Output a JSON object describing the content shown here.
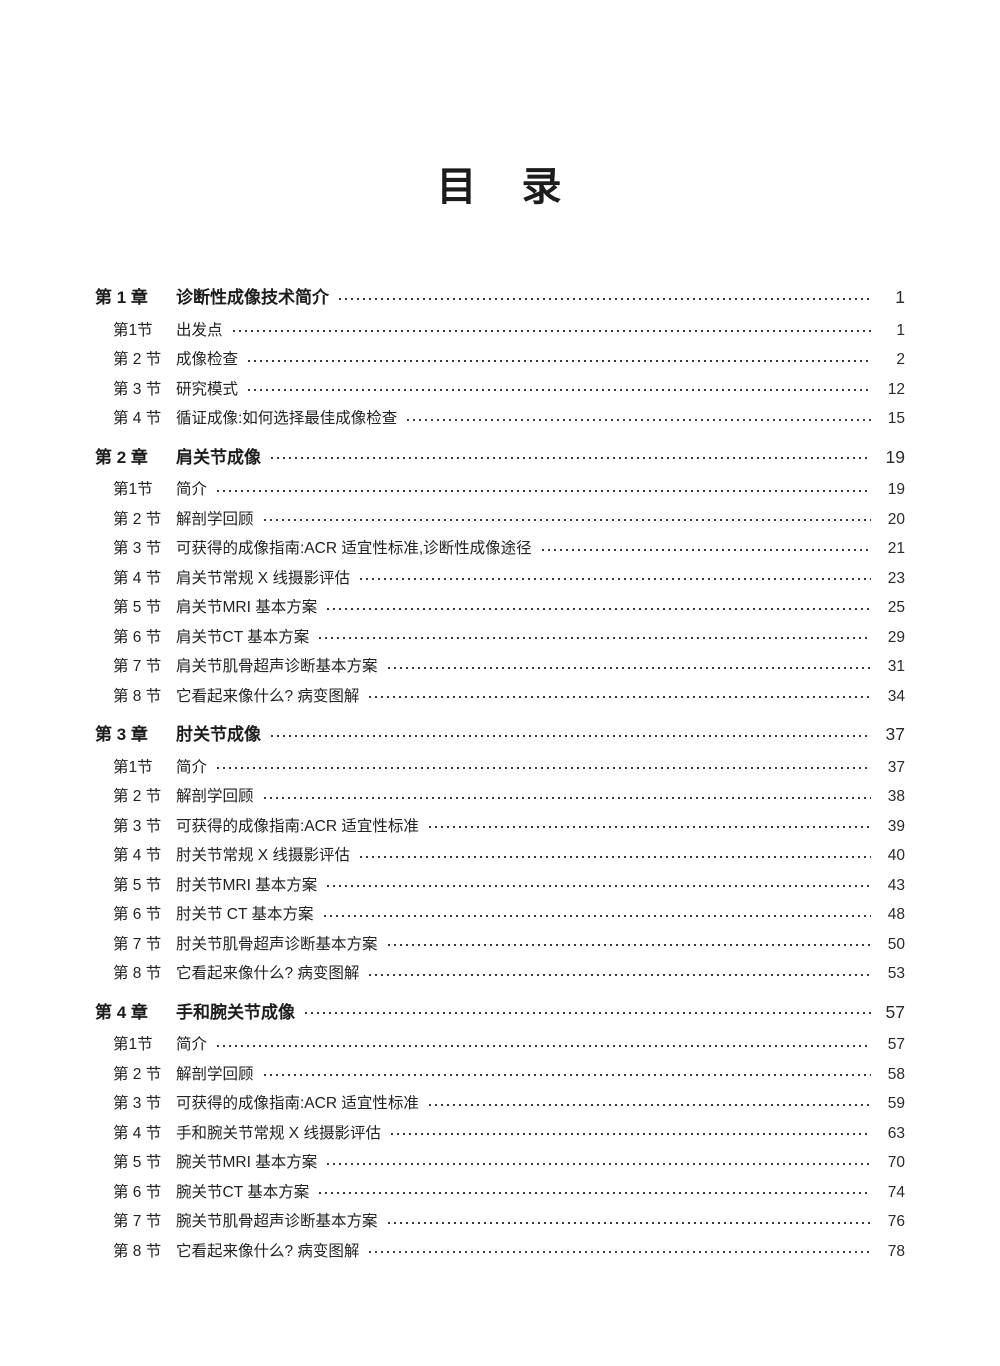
{
  "page": {
    "title": "目 录"
  },
  "colors": {
    "ink": "#222222",
    "background": "#ffffff"
  },
  "toc": {
    "chapters": [
      {
        "label": "第 1 章",
        "title": "诊断性成像技术简介",
        "page": "1",
        "sections": [
          {
            "label": "第1节",
            "title": "出发点",
            "page": "1"
          },
          {
            "label": "第 2 节",
            "title": "成像检查",
            "page": "2"
          },
          {
            "label": "第 3 节",
            "title": "研究模式",
            "page": "12"
          },
          {
            "label": "第 4 节",
            "title": "循证成像:如何选择最佳成像检查",
            "page": "15"
          }
        ]
      },
      {
        "label": "第 2 章",
        "title": "肩关节成像",
        "page": "19",
        "sections": [
          {
            "label": "第1节",
            "title": "简介",
            "page": "19"
          },
          {
            "label": "第 2 节",
            "title": "解剖学回顾",
            "page": "20"
          },
          {
            "label": "第 3 节",
            "title": "可获得的成像指南:ACR 适宜性标准,诊断性成像途径",
            "page": "21"
          },
          {
            "label": "第 4 节",
            "title": "肩关节常规 X 线摄影评估",
            "page": "23"
          },
          {
            "label": "第 5 节",
            "title": "肩关节MRI 基本方案",
            "page": "25"
          },
          {
            "label": "第 6 节",
            "title": "肩关节CT 基本方案",
            "page": "29"
          },
          {
            "label": "第 7 节",
            "title": "肩关节肌骨超声诊断基本方案",
            "page": "31"
          },
          {
            "label": "第 8 节",
            "title": "它看起来像什么? 病变图解",
            "page": "34"
          }
        ]
      },
      {
        "label": "第 3 章",
        "title": "肘关节成像",
        "page": "37",
        "sections": [
          {
            "label": "第1节",
            "title": "简介",
            "page": "37"
          },
          {
            "label": "第 2 节",
            "title": "解剖学回顾",
            "page": "38"
          },
          {
            "label": "第 3 节",
            "title": "可获得的成像指南:ACR 适宜性标准",
            "page": "39"
          },
          {
            "label": "第 4 节",
            "title": "肘关节常规 X 线摄影评估",
            "page": "40"
          },
          {
            "label": "第 5 节",
            "title": "肘关节MRI 基本方案",
            "page": "43"
          },
          {
            "label": "第 6 节",
            "title": "肘关节 CT 基本方案",
            "page": "48"
          },
          {
            "label": "第 7 节",
            "title": "肘关节肌骨超声诊断基本方案",
            "page": "50"
          },
          {
            "label": "第 8 节",
            "title": "它看起来像什么? 病变图解",
            "page": "53"
          }
        ]
      },
      {
        "label": "第 4 章",
        "title": "手和腕关节成像",
        "page": "57",
        "sections": [
          {
            "label": "第1节",
            "title": "简介",
            "page": "57"
          },
          {
            "label": "第 2 节",
            "title": "解剖学回顾",
            "page": "58"
          },
          {
            "label": "第 3 节",
            "title": "可获得的成像指南:ACR 适宜性标准",
            "page": "59"
          },
          {
            "label": "第 4 节",
            "title": "手和腕关节常规 X 线摄影评估",
            "page": "63"
          },
          {
            "label": "第 5 节",
            "title": "腕关节MRI 基本方案",
            "page": "70"
          },
          {
            "label": "第 6 节",
            "title": "腕关节CT 基本方案",
            "page": "74"
          },
          {
            "label": "第 7 节",
            "title": "腕关节肌骨超声诊断基本方案",
            "page": "76"
          },
          {
            "label": "第 8 节",
            "title": "它看起来像什么? 病变图解",
            "page": "78"
          }
        ]
      }
    ]
  }
}
